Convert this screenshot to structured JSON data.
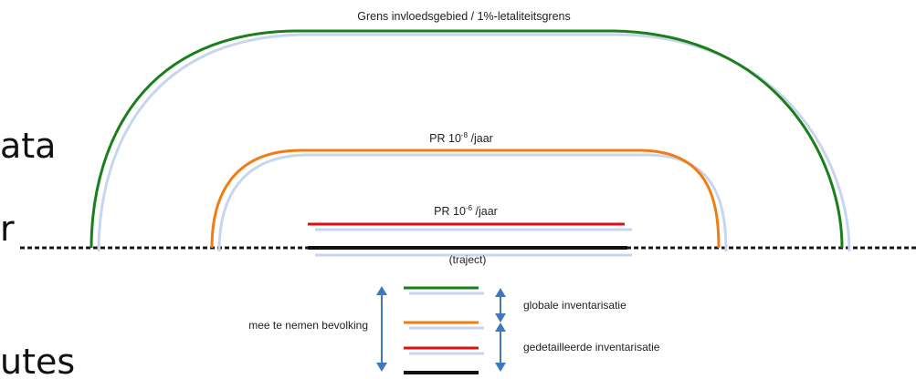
{
  "slide_fragments": [
    "ata",
    "r",
    "utes"
  ],
  "diagram": {
    "contours": [
      {
        "label": "Grens invloedsgebied / 1%-letaliteitsgrens",
        "color": "#1a7f1a"
      },
      {
        "label_main": "PR 10",
        "label_exp": "-8",
        "label_unit": " /jaar",
        "color": "#f07c12"
      },
      {
        "label_main": "PR 10",
        "label_exp": "-6",
        "label_unit": " /jaar",
        "color": "#e01010"
      }
    ],
    "trajectory_label": "(traject)",
    "shadow_color": "#c7d6ee",
    "arrow_color": "#3f78c0",
    "legend": {
      "left_label": "mee te nemen bevolking",
      "right_labels": [
        "globale inventarisatie",
        "gedetailleerde inventarisatie"
      ],
      "line_colors": [
        "#1a7f1a",
        "#f07c12",
        "#e01010",
        "#111111"
      ]
    }
  }
}
